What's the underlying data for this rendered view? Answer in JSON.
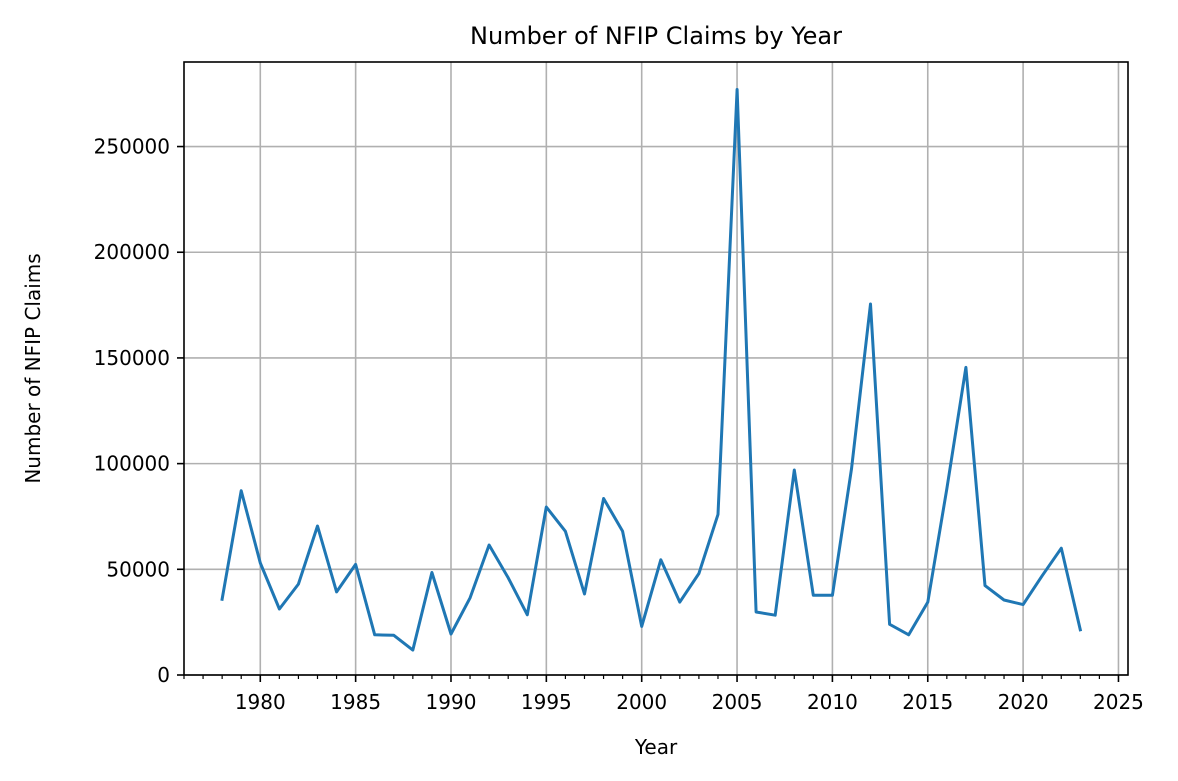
{
  "chart_data": {
    "type": "line",
    "title": "Number of NFIP Claims by Year",
    "xlabel": "Year",
    "ylabel": "Number of NFIP Claims",
    "grid": true,
    "xlim": [
      1976,
      2025.5
    ],
    "ylim": [
      0,
      290000
    ],
    "xticks": [
      1980,
      1985,
      1990,
      1995,
      2000,
      2005,
      2010,
      2015,
      2020,
      2025
    ],
    "yticks": [
      0,
      50000,
      100000,
      150000,
      200000,
      250000
    ],
    "series": [
      {
        "color": "#1f77b4",
        "x": [
          1978,
          1979,
          1980,
          1981,
          1982,
          1983,
          1984,
          1985,
          1986,
          1987,
          1988,
          1989,
          1990,
          1991,
          1992,
          1993,
          1994,
          1995,
          1996,
          1997,
          1998,
          1999,
          2000,
          2001,
          2002,
          2003,
          2004,
          2005,
          2006,
          2007,
          2008,
          2009,
          2010,
          2011,
          2012,
          2013,
          2014,
          2015,
          2016,
          2017,
          2018,
          2019,
          2020,
          2021,
          2022,
          2023
        ],
        "values": [
          35800,
          87200,
          53000,
          31200,
          43000,
          70500,
          39300,
          52300,
          19000,
          18800,
          11800,
          48500,
          19400,
          36500,
          61500,
          46000,
          28500,
          79500,
          68000,
          38300,
          83500,
          68000,
          23000,
          54500,
          34500,
          48000,
          76000,
          277000,
          29800,
          28300,
          97000,
          37700,
          37700,
          97500,
          175500,
          24000,
          19000,
          34500,
          88000,
          145500,
          42300,
          35500,
          33300,
          47000,
          60000,
          21400
        ]
      }
    ]
  }
}
